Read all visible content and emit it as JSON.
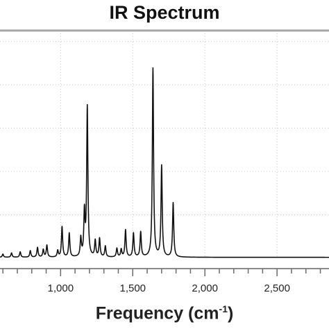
{
  "chart_data": {
    "type": "line",
    "title": "IR Spectrum",
    "xlabel": {
      "text": "Frequency (cm",
      "sup": "-1",
      "close": ")"
    },
    "ylabel": "",
    "x_ticks": [
      1000,
      1500,
      2000,
      2500
    ],
    "x_tick_labels": [
      "1,000",
      "1,500",
      "2,000",
      "2,500"
    ],
    "xlim": [
      580,
      2860
    ],
    "ylim": [
      0,
      1.05
    ],
    "grid": true,
    "legend": "none",
    "series": [
      {
        "color": "#111111",
        "peaks": [
          {
            "x": 600,
            "y": 0.015
          },
          {
            "x": 660,
            "y": 0.02
          },
          {
            "x": 720,
            "y": 0.025
          },
          {
            "x": 790,
            "y": 0.03
          },
          {
            "x": 840,
            "y": 0.045
          },
          {
            "x": 880,
            "y": 0.035
          },
          {
            "x": 905,
            "y": 0.055
          },
          {
            "x": 980,
            "y": 0.03
          },
          {
            "x": 1010,
            "y": 0.14
          },
          {
            "x": 1060,
            "y": 0.11
          },
          {
            "x": 1140,
            "y": 0.085
          },
          {
            "x": 1165,
            "y": 0.2
          },
          {
            "x": 1185,
            "y": 0.69
          },
          {
            "x": 1240,
            "y": 0.075
          },
          {
            "x": 1270,
            "y": 0.085
          },
          {
            "x": 1310,
            "y": 0.05
          },
          {
            "x": 1390,
            "y": 0.04
          },
          {
            "x": 1420,
            "y": 0.035
          },
          {
            "x": 1450,
            "y": 0.125
          },
          {
            "x": 1505,
            "y": 0.11
          },
          {
            "x": 1555,
            "y": 0.115
          },
          {
            "x": 1640,
            "y": 0.87
          },
          {
            "x": 1700,
            "y": 0.42
          },
          {
            "x": 1780,
            "y": 0.25
          }
        ]
      }
    ]
  }
}
